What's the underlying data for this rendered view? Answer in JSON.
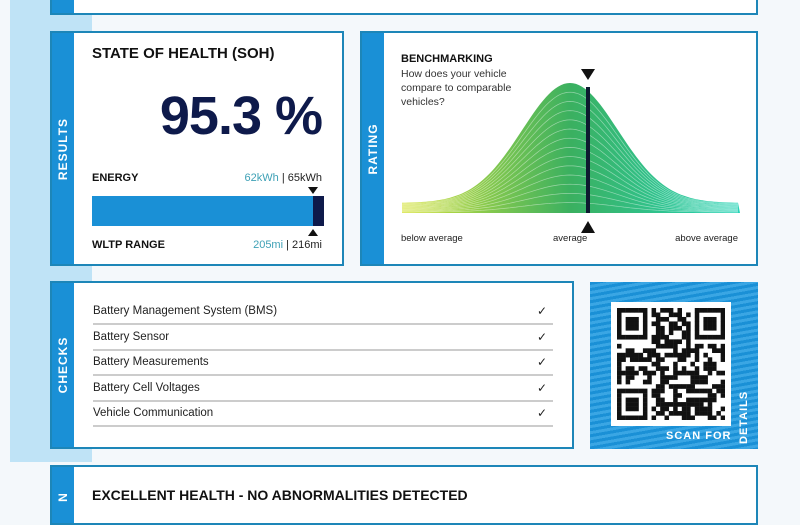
{
  "results": {
    "side_label": "RESULTS",
    "title": "STATE OF HEALTH (SOH)",
    "soh_value": "95.3 %",
    "energy_label": "ENERGY",
    "energy_current": "62kWh",
    "energy_separator": " | ",
    "energy_original": "65kWh",
    "range_label": "WLTP RANGE",
    "range_current": "205mi",
    "range_separator": " | ",
    "range_original": "216mi",
    "bar_fill_fraction": 0.953,
    "bar_color": "#1a90d6",
    "bar_end_color": "#0e1a4b"
  },
  "rating": {
    "side_label": "RATING",
    "title": "BENCHMARKING",
    "question": "How does your vehicle compare to comparable vehicles?",
    "axis_left": "below average",
    "axis_center": "average",
    "axis_right": "above average"
  },
  "checks": {
    "side_label": "CHECKS",
    "items": [
      {
        "label": "Battery Management System (BMS)",
        "status": "✓"
      },
      {
        "label": "Battery Sensor",
        "status": "✓"
      },
      {
        "label": "Battery Measurements",
        "status": "✓"
      },
      {
        "label": "Battery Cell Voltages",
        "status": "✓"
      },
      {
        "label": "Vehicle Communication",
        "status": "✓"
      }
    ]
  },
  "qr": {
    "caption_bottom": "SCAN FOR",
    "caption_side": "DETAILS"
  },
  "conclusion": {
    "side_label": "N",
    "text": "EXCELLENT HEALTH - NO ABNORMALITIES DETECTED"
  }
}
